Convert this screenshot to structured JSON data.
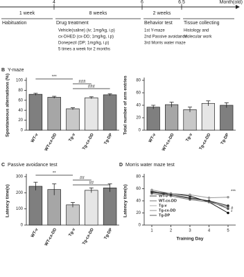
{
  "timeline": {
    "panel_label": "A",
    "months": [
      "4",
      "6",
      "6.5"
    ],
    "unit": "Month(old)",
    "durations": [
      "1 week",
      "8 weeks",
      "2 weeks"
    ],
    "stages": [
      {
        "name": "Habituation",
        "details": []
      },
      {
        "name": "Drug treatment",
        "details": [
          "Vehicle(saline) (iv; 1mg/kg, i.p)",
          "cx-DHED (cx-DD; 1mg/kg, i.p)",
          "Donepezil (DP; 1mg/kg, i.p)",
          "5 times a week for 2 months"
        ]
      },
      {
        "name": "Behavior test",
        "details": [
          "1st Y-maze",
          "2nd Passive avoidance",
          "3rd Morris water maze"
        ]
      },
      {
        "name": "Tissue collecting",
        "details": [
          "Histology and",
          "Molecular work"
        ]
      }
    ]
  },
  "chart_data": [
    {
      "type": "bar",
      "panel_label": "B",
      "title": "Y-maze",
      "y_label": "Spontaneous alternations (%)",
      "categories": [
        "WT-v",
        "WT-cx-DD",
        "Tg-v",
        "Tg-cx-DD",
        "Tg-DP"
      ],
      "values": [
        72,
        66,
        43,
        65,
        71
      ],
      "errors": [
        2,
        2,
        2,
        2,
        2
      ],
      "colors": [
        "#7f7f7f",
        "#a6a6a6",
        "#c8c8c8",
        "#e6e6e6",
        "#7f7f7f"
      ],
      "ylim": [
        0,
        100
      ],
      "yticks": [
        0,
        20,
        40,
        60,
        80,
        100
      ],
      "annotations": [
        "***",
        "###",
        "###"
      ]
    },
    {
      "type": "bar",
      "y_label": "Total number of arm entries",
      "categories": [
        "WT-v",
        "WT-cx-DD",
        "Tg-v",
        "Tg-cx-DD",
        "Tg-DP"
      ],
      "values": [
        37,
        41,
        33,
        43,
        40
      ],
      "errors": [
        3,
        4,
        4,
        4,
        4
      ],
      "colors": [
        "#7f7f7f",
        "#a6a6a6",
        "#c8c8c8",
        "#e6e6e6",
        "#7f7f7f"
      ],
      "ylim": [
        0,
        80
      ],
      "yticks": [
        0,
        20,
        40,
        60,
        80
      ],
      "annotations": []
    },
    {
      "type": "bar",
      "panel_label": "C",
      "title": "Passive avoidance test",
      "y_label": "Latency time(s)",
      "categories": [
        "WT-v",
        "WT-cx-DD",
        "Tg-v",
        "Tg-cx-DD",
        "Tg-DP"
      ],
      "values": [
        240,
        220,
        125,
        215,
        230
      ],
      "errors": [
        25,
        35,
        15,
        15,
        25
      ],
      "colors": [
        "#7f7f7f",
        "#a6a6a6",
        "#c8c8c8",
        "#e6e6e6",
        "#7f7f7f"
      ],
      "ylim": [
        0,
        300
      ],
      "yticks": [
        0,
        100,
        200,
        300
      ],
      "annotations": [
        "**",
        "##",
        "##"
      ]
    },
    {
      "type": "line",
      "panel_label": "D",
      "title": "Morris water maze test",
      "y_label": "Latency time(s)",
      "x_label": "Training Day",
      "x": [
        1,
        2,
        3,
        4,
        5
      ],
      "xlim": [
        0.6,
        5.4
      ],
      "xticks": [
        1,
        2,
        3,
        4,
        5
      ],
      "ylim": [
        0,
        80
      ],
      "yticks": [
        0,
        20,
        40,
        60,
        80
      ],
      "series": [
        {
          "name": "WT-v",
          "color": "#111111",
          "values": [
            55,
            52,
            48,
            38,
            20
          ]
        },
        {
          "name": "WT-cx-DD",
          "color": "#555555",
          "values": [
            56,
            50,
            45,
            40,
            27
          ]
        },
        {
          "name": "Tg-v",
          "color": "#999999",
          "values": [
            58,
            52,
            50,
            45,
            46
          ]
        },
        {
          "name": "Tg-cx-DD",
          "color": "#777777",
          "values": [
            52,
            48,
            42,
            38,
            30
          ]
        },
        {
          "name": "Tg-DP",
          "color": "#333333",
          "values": [
            54,
            50,
            44,
            40,
            32
          ]
        }
      ],
      "annotations": [
        "***",
        "*",
        "#"
      ]
    }
  ]
}
